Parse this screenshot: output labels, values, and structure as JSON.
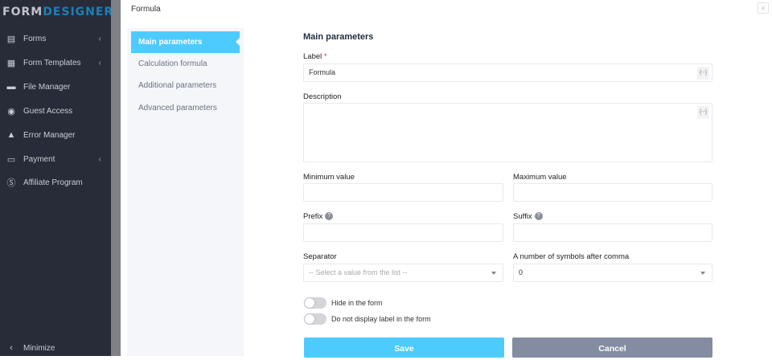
{
  "logo": {
    "part1": "FORM",
    "part2": "DESIGNER"
  },
  "sidebar": {
    "items": [
      {
        "label": "Forms",
        "icon": "forms-icon",
        "chevron": true
      },
      {
        "label": "Form Templates",
        "icon": "template-icon",
        "chevron": true
      },
      {
        "label": "File Manager",
        "icon": "folder-icon",
        "chevron": false
      },
      {
        "label": "Guest Access",
        "icon": "user-circle-icon",
        "chevron": false
      },
      {
        "label": "Error Manager",
        "icon": "warning-icon",
        "chevron": false
      },
      {
        "label": "Payment",
        "icon": "credit-card-icon",
        "chevron": true
      },
      {
        "label": "Affiliate Program",
        "icon": "dollar-icon",
        "chevron": false
      }
    ],
    "minimize": "Minimize"
  },
  "modal": {
    "title": "Formula",
    "close": "×"
  },
  "tabs": [
    "Main parameters",
    "Calculation formula",
    "Additional parameters",
    "Advanced parameters"
  ],
  "form": {
    "heading": "Main parameters",
    "label_label": "Label",
    "required": "*",
    "label_value": "Formula",
    "var_btn": "{--}",
    "description_label": "Description",
    "description_value": "",
    "min_label": "Minimum value",
    "max_label": "Maximum value",
    "prefix_label": "Prefix",
    "suffix_label": "Suffix",
    "help": "?",
    "separator_label": "Separator",
    "separator_placeholder": "-- Select a value from the list --",
    "symbols_label": "A number of symbols after comma",
    "symbols_value": "0",
    "hide_label": "Hide in the form",
    "hide_on": false,
    "nolabel_label": "Do not display label in the form",
    "nolabel_on": false,
    "save": "Save",
    "cancel": "Cancel"
  },
  "colors": {
    "accent": "#4dcbfe",
    "cancel": "#838ca1",
    "sidebar": "#272c38"
  }
}
